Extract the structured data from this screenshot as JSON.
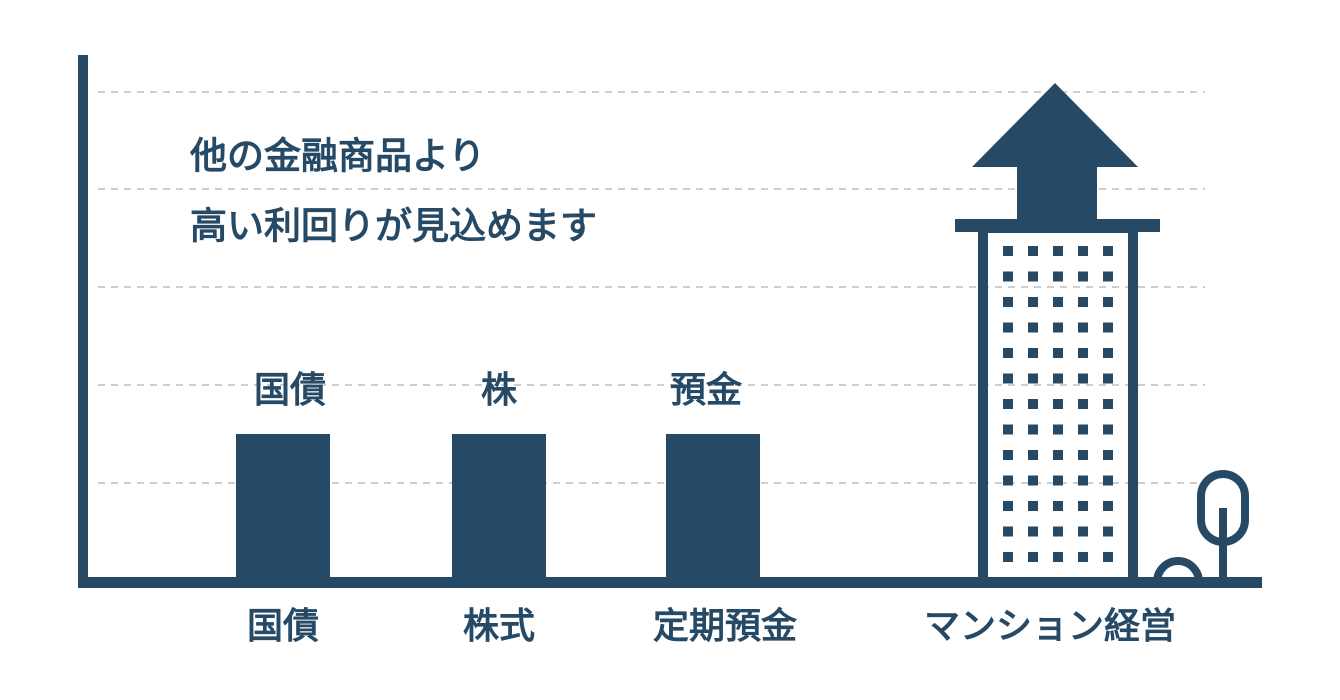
{
  "headline": [
    "他の金融商品より",
    "高い利回りが見込めます"
  ],
  "bar_labels": [
    "国債",
    "株",
    "預金"
  ],
  "categories": [
    "国債",
    "株式",
    "定期預金",
    "マンション経営"
  ]
}
